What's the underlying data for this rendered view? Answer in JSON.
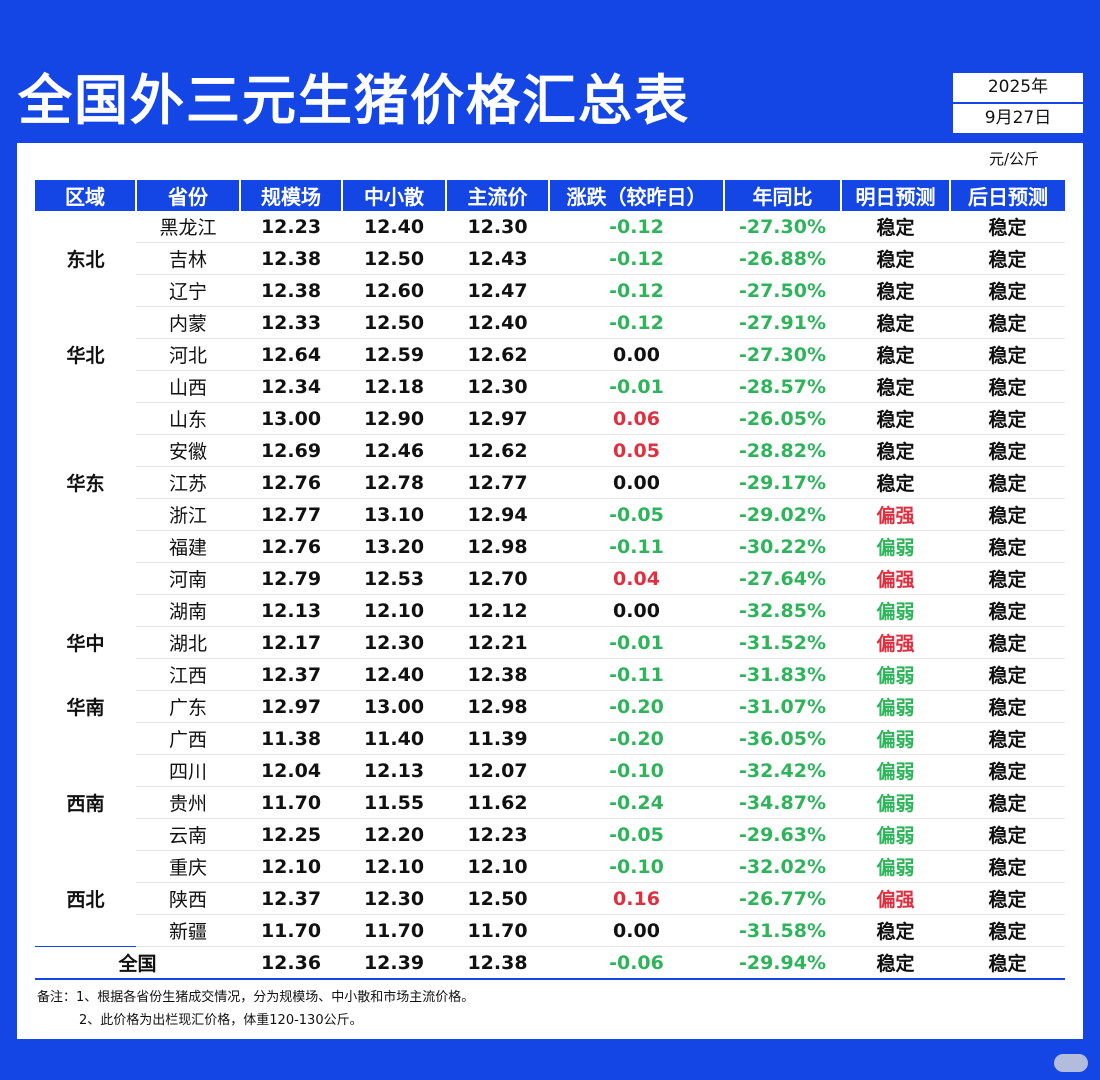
{
  "title": "全国外三元生猪价格汇总表",
  "date": {
    "year": "2025年",
    "day": "9月27日"
  },
  "unit": "元/公斤",
  "headers": [
    "区域",
    "省份",
    "规模场",
    "中小散",
    "主流价",
    "涨跌（较昨日）",
    "年同比",
    "明日预测",
    "后日预测"
  ],
  "rows": [
    {
      "region": "",
      "province": "黑龙江",
      "large": "12.23",
      "small": "12.40",
      "main": "12.30",
      "change": "-0.12",
      "yoy": "-27.30%",
      "tomorrow": "稳定",
      "after": "稳定"
    },
    {
      "region": "东北",
      "province": "吉林",
      "large": "12.38",
      "small": "12.50",
      "main": "12.43",
      "change": "-0.12",
      "yoy": "-26.88%",
      "tomorrow": "稳定",
      "after": "稳定"
    },
    {
      "region": "",
      "province": "辽宁",
      "large": "12.38",
      "small": "12.60",
      "main": "12.47",
      "change": "-0.12",
      "yoy": "-27.50%",
      "tomorrow": "稳定",
      "after": "稳定"
    },
    {
      "region": "",
      "province": "内蒙",
      "large": "12.33",
      "small": "12.50",
      "main": "12.40",
      "change": "-0.12",
      "yoy": "-27.91%",
      "tomorrow": "稳定",
      "after": "稳定"
    },
    {
      "region": "华北",
      "province": "河北",
      "large": "12.64",
      "small": "12.59",
      "main": "12.62",
      "change": "0.00",
      "yoy": "-27.30%",
      "tomorrow": "稳定",
      "after": "稳定"
    },
    {
      "region": "",
      "province": "山西",
      "large": "12.34",
      "small": "12.18",
      "main": "12.30",
      "change": "-0.01",
      "yoy": "-28.57%",
      "tomorrow": "稳定",
      "after": "稳定"
    },
    {
      "region": "",
      "province": "山东",
      "large": "13.00",
      "small": "12.90",
      "main": "12.97",
      "change": "0.06",
      "yoy": "-26.05%",
      "tomorrow": "稳定",
      "after": "稳定"
    },
    {
      "region": "",
      "province": "安徽",
      "large": "12.69",
      "small": "12.46",
      "main": "12.62",
      "change": "0.05",
      "yoy": "-28.82%",
      "tomorrow": "稳定",
      "after": "稳定"
    },
    {
      "region": "华东",
      "province": "江苏",
      "large": "12.76",
      "small": "12.78",
      "main": "12.77",
      "change": "0.00",
      "yoy": "-29.17%",
      "tomorrow": "稳定",
      "after": "稳定"
    },
    {
      "region": "",
      "province": "浙江",
      "large": "12.77",
      "small": "13.10",
      "main": "12.94",
      "change": "-0.05",
      "yoy": "-29.02%",
      "tomorrow": "偏强",
      "after": "稳定"
    },
    {
      "region": "",
      "province": "福建",
      "large": "12.76",
      "small": "13.20",
      "main": "12.98",
      "change": "-0.11",
      "yoy": "-30.22%",
      "tomorrow": "偏弱",
      "after": "稳定"
    },
    {
      "region": "",
      "province": "河南",
      "large": "12.79",
      "small": "12.53",
      "main": "12.70",
      "change": "0.04",
      "yoy": "-27.64%",
      "tomorrow": "偏强",
      "after": "稳定"
    },
    {
      "region": "",
      "province": "湖南",
      "large": "12.13",
      "small": "12.10",
      "main": "12.12",
      "change": "0.00",
      "yoy": "-32.85%",
      "tomorrow": "偏弱",
      "after": "稳定"
    },
    {
      "region": "华中",
      "province": "湖北",
      "large": "12.17",
      "small": "12.30",
      "main": "12.21",
      "change": "-0.01",
      "yoy": "-31.52%",
      "tomorrow": "偏强",
      "after": "稳定"
    },
    {
      "region": "",
      "province": "江西",
      "large": "12.37",
      "small": "12.40",
      "main": "12.38",
      "change": "-0.11",
      "yoy": "-31.83%",
      "tomorrow": "偏弱",
      "after": "稳定"
    },
    {
      "region": "华南",
      "province": "广东",
      "large": "12.97",
      "small": "13.00",
      "main": "12.98",
      "change": "-0.20",
      "yoy": "-31.07%",
      "tomorrow": "偏弱",
      "after": "稳定"
    },
    {
      "region": "",
      "province": "广西",
      "large": "11.38",
      "small": "11.40",
      "main": "11.39",
      "change": "-0.20",
      "yoy": "-36.05%",
      "tomorrow": "偏弱",
      "after": "稳定"
    },
    {
      "region": "",
      "province": "四川",
      "large": "12.04",
      "small": "12.13",
      "main": "12.07",
      "change": "-0.10",
      "yoy": "-32.42%",
      "tomorrow": "偏弱",
      "after": "稳定"
    },
    {
      "region": "西南",
      "province": "贵州",
      "large": "11.70",
      "small": "11.55",
      "main": "11.62",
      "change": "-0.24",
      "yoy": "-34.87%",
      "tomorrow": "偏弱",
      "after": "稳定"
    },
    {
      "region": "",
      "province": "云南",
      "large": "12.25",
      "small": "12.20",
      "main": "12.23",
      "change": "-0.05",
      "yoy": "-29.63%",
      "tomorrow": "偏弱",
      "after": "稳定"
    },
    {
      "region": "",
      "province": "重庆",
      "large": "12.10",
      "small": "12.10",
      "main": "12.10",
      "change": "-0.10",
      "yoy": "-32.02%",
      "tomorrow": "偏弱",
      "after": "稳定"
    },
    {
      "region": "西北",
      "province": "陕西",
      "large": "12.37",
      "small": "12.30",
      "main": "12.50",
      "change": "0.16",
      "yoy": "-26.77%",
      "tomorrow": "偏强",
      "after": "稳定"
    },
    {
      "region": "",
      "province": "新疆",
      "large": "11.70",
      "small": "11.70",
      "main": "11.70",
      "change": "0.00",
      "yoy": "-31.58%",
      "tomorrow": "稳定",
      "after": "稳定"
    }
  ],
  "total": {
    "label": "全国",
    "large": "12.36",
    "small": "12.39",
    "main": "12.38",
    "change": "-0.06",
    "yoy": "-29.94%",
    "tomorrow": "稳定",
    "after": "稳定"
  },
  "notes": [
    "备注：1、根据各省份生猪成交情况，分为规模场、中小散和市场主流价格。",
    "2、此价格为出栏现汇价格，体重120-130公斤。"
  ],
  "colors": {
    "brand_blue": "#1446e6",
    "up_red": "#e03040",
    "down_green": "#2fb45b"
  }
}
